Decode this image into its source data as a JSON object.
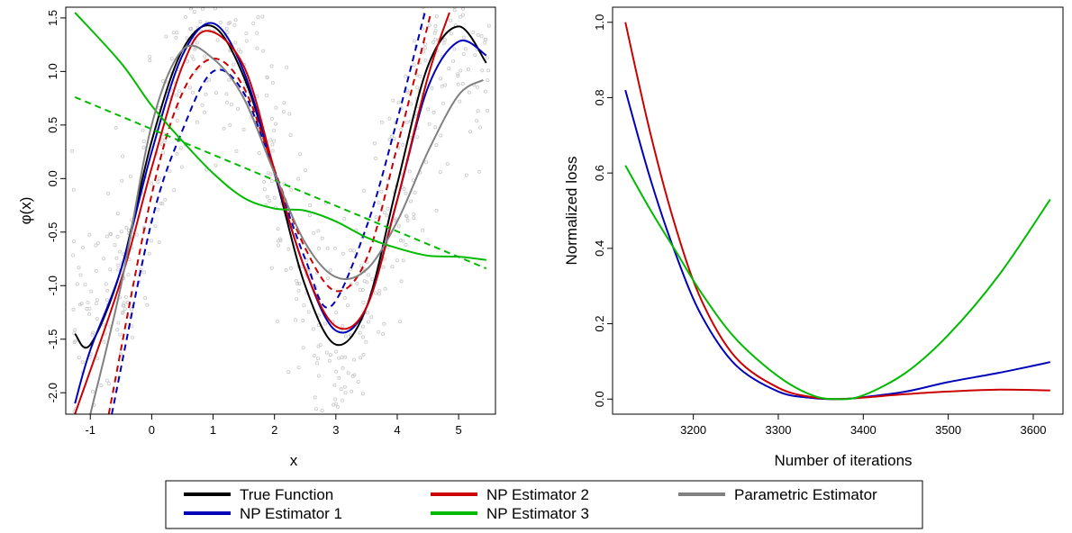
{
  "chart_data": [
    {
      "type": "line",
      "xlabel": "x",
      "ylabel": "φ(x)",
      "xlim": [
        -1.4,
        5.6
      ],
      "ylim": [
        -2.2,
        1.6
      ],
      "xticks": [
        "-1",
        "0",
        "1",
        "2",
        "3",
        "4",
        "5"
      ],
      "yticks": [
        "-2.0",
        "-1.5",
        "-1.0",
        "-0.5",
        "0.0",
        "0.5",
        "1.0",
        "1.5"
      ],
      "grid": false,
      "scatter_color": "#c8c8c8",
      "series": [
        {
          "name": "True Function",
          "color": "#000000",
          "dash": false,
          "x": [
            -1.25,
            -1.0,
            -0.5,
            0.0,
            0.5,
            1.0,
            1.5,
            2.0,
            2.5,
            3.0,
            3.5,
            4.0,
            4.5,
            5.0,
            5.45
          ],
          "y": [
            -1.45,
            -1.55,
            -0.85,
            0.35,
            1.2,
            1.42,
            0.95,
            0.05,
            -1.0,
            -1.55,
            -1.2,
            -0.05,
            1.05,
            1.42,
            1.08
          ]
        },
        {
          "name": "NP Estimator 1",
          "color": "#0000bb",
          "dash": false,
          "x": [
            -1.25,
            -1.0,
            -0.5,
            0.0,
            0.5,
            1.0,
            1.5,
            2.0,
            2.5,
            3.0,
            3.5,
            4.0,
            4.5,
            5.0,
            5.45
          ],
          "y": [
            -2.1,
            -1.6,
            -0.85,
            0.25,
            1.15,
            1.45,
            1.0,
            0.05,
            -0.85,
            -1.42,
            -1.2,
            -0.2,
            0.85,
            1.28,
            1.15
          ]
        },
        {
          "name": "NP Estimator 1",
          "color": "#0000bb",
          "dash": true,
          "x": [
            -0.65,
            0.0,
            0.5,
            1.0,
            1.5,
            2.0,
            2.5,
            2.9,
            3.5,
            4.0,
            4.45
          ],
          "y": [
            -2.2,
            -0.4,
            0.45,
            1.0,
            0.8,
            0.05,
            -0.75,
            -1.2,
            -0.45,
            0.55,
            1.55
          ]
        },
        {
          "name": "NP Estimator 2",
          "color": "#cc0000",
          "dash": false,
          "x": [
            -1.25,
            -0.5,
            0.0,
            0.5,
            0.9,
            1.5,
            2.0,
            2.5,
            3.0,
            3.5,
            4.0,
            4.5,
            4.85
          ],
          "y": [
            -2.2,
            -0.95,
            0.1,
            1.05,
            1.38,
            1.05,
            0.08,
            -0.85,
            -1.38,
            -1.2,
            -0.2,
            0.95,
            1.55
          ]
        },
        {
          "name": "NP Estimator 2",
          "color": "#cc0000",
          "dash": true,
          "x": [
            -0.7,
            0.0,
            0.5,
            1.0,
            1.5,
            2.0,
            2.5,
            3.0,
            3.5,
            4.0,
            4.55
          ],
          "y": [
            -2.2,
            -0.15,
            0.8,
            1.12,
            0.85,
            0.08,
            -0.65,
            -1.05,
            -0.75,
            0.3,
            1.55
          ]
        },
        {
          "name": "NP Estimator 3",
          "color": "#00bb00",
          "dash": false,
          "x": [
            -1.25,
            -0.5,
            0.0,
            0.5,
            1.0,
            1.5,
            2.0,
            2.5,
            3.0,
            3.5,
            4.0,
            4.5,
            5.0,
            5.45
          ],
          "y": [
            1.55,
            1.08,
            0.68,
            0.35,
            0.05,
            -0.18,
            -0.28,
            -0.3,
            -0.4,
            -0.55,
            -0.65,
            -0.72,
            -0.73,
            -0.76
          ]
        },
        {
          "name": "NP Estimator 3",
          "color": "#00bb00",
          "dash": true,
          "x": [
            -1.25,
            5.45
          ],
          "y": [
            0.76,
            -0.84
          ]
        },
        {
          "name": "Parametric Estimator",
          "color": "#808080",
          "dash": false,
          "x": [
            -1.0,
            -0.5,
            0.0,
            0.5,
            1.0,
            1.5,
            2.0,
            2.5,
            3.0,
            3.5,
            4.0,
            4.5,
            5.0,
            5.4
          ],
          "y": [
            -2.2,
            -1.0,
            0.5,
            1.2,
            1.12,
            0.75,
            0.05,
            -0.6,
            -0.92,
            -0.85,
            -0.4,
            0.25,
            0.78,
            0.92
          ]
        }
      ]
    },
    {
      "type": "line",
      "xlabel": "Number of iterations",
      "ylabel": "Normalized loss",
      "xlim": [
        3105,
        3635
      ],
      "ylim": [
        -0.04,
        1.04
      ],
      "xticks": [
        "3200",
        "3300",
        "3400",
        "3500",
        "3600"
      ],
      "yticks": [
        "0.0",
        "0.2",
        "0.4",
        "0.6",
        "0.8",
        "1.0"
      ],
      "grid": false,
      "series": [
        {
          "name": "NP Estimator 1",
          "color": "#0000bb",
          "x": [
            3120,
            3150,
            3180,
            3210,
            3250,
            3300,
            3340,
            3370,
            3400,
            3450,
            3500,
            3560,
            3620
          ],
          "y": [
            0.82,
            0.58,
            0.38,
            0.22,
            0.09,
            0.02,
            0.003,
            0.0,
            0.005,
            0.02,
            0.045,
            0.07,
            0.098
          ]
        },
        {
          "name": "NP Estimator 2",
          "color": "#cc0000",
          "x": [
            3120,
            3150,
            3180,
            3210,
            3250,
            3300,
            3340,
            3370,
            3400,
            3450,
            3500,
            3560,
            3620
          ],
          "y": [
            1.0,
            0.7,
            0.45,
            0.26,
            0.11,
            0.03,
            0.005,
            0.0,
            0.004,
            0.013,
            0.02,
            0.025,
            0.023
          ]
        },
        {
          "name": "NP Estimator 3",
          "color": "#00bb00",
          "x": [
            3120,
            3150,
            3180,
            3210,
            3250,
            3300,
            3340,
            3370,
            3400,
            3450,
            3500,
            3560,
            3620
          ],
          "y": [
            0.62,
            0.5,
            0.39,
            0.28,
            0.16,
            0.06,
            0.01,
            0.0,
            0.01,
            0.07,
            0.17,
            0.33,
            0.53
          ]
        }
      ]
    }
  ],
  "legend": {
    "placement": "bottom-center",
    "items": [
      {
        "label": "True Function",
        "color": "#000000"
      },
      {
        "label": "NP Estimator 1",
        "color": "#0000bb"
      },
      {
        "label": "NP Estimator 2",
        "color": "#cc0000"
      },
      {
        "label": "NP Estimator 3",
        "color": "#00bb00"
      },
      {
        "label": "Parametric Estimator",
        "color": "#808080"
      }
    ]
  }
}
